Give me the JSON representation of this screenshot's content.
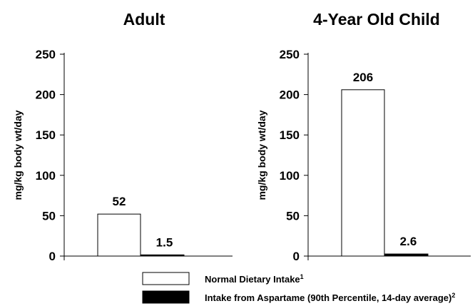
{
  "chart_data": [
    {
      "type": "bar",
      "title": "Adult",
      "ylabel": "mg/kg body wt/day",
      "ylim": [
        0,
        250
      ],
      "yticks": [
        "0",
        "50",
        "100",
        "150",
        "200",
        "250"
      ],
      "categories": [
        "Normal Dietary Intake",
        "Intake from Aspartame (90th Percentile, 14-day average)"
      ],
      "values": [
        52,
        1.5
      ],
      "value_labels": [
        "52",
        "1.5"
      ],
      "colors": [
        "#ffffff",
        "#000000"
      ]
    },
    {
      "type": "bar",
      "title": "4-Year Old Child",
      "ylabel": "mg/kg body wt/day",
      "ylim": [
        0,
        250
      ],
      "yticks": [
        "0",
        "50",
        "100",
        "150",
        "200",
        "250"
      ],
      "categories": [
        "Normal Dietary Intake",
        "Intake from Aspartame (90th Percentile, 14-day average)"
      ],
      "values": [
        206,
        2.6
      ],
      "value_labels": [
        "206",
        "2.6"
      ],
      "colors": [
        "#ffffff",
        "#000000"
      ]
    }
  ],
  "legend": {
    "items": [
      {
        "label": "Normal Dietary Intake",
        "sup": "1",
        "color": "#ffffff"
      },
      {
        "label": "Intake from Aspartame (90th Percentile, 14-day average)",
        "sup": "2",
        "color": "#000000"
      }
    ]
  }
}
